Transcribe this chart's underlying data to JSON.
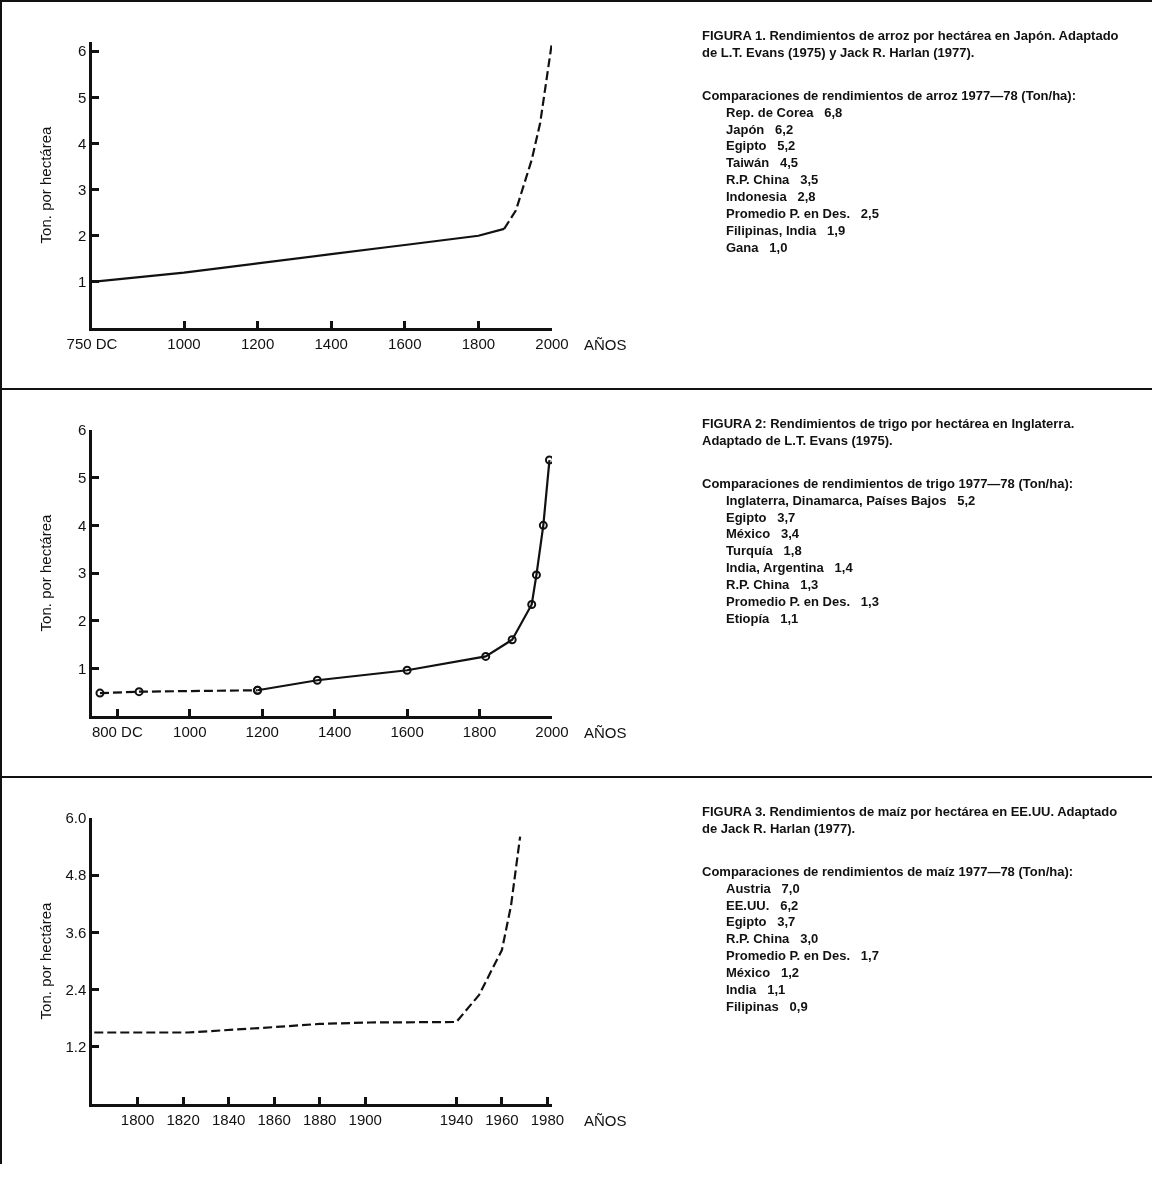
{
  "chart_data": [
    {
      "type": "line",
      "xlabel": "AÑOS",
      "ylabel": "Ton. por hectárea",
      "xlim": [
        750,
        2000
      ],
      "ylim": [
        0,
        6.2
      ],
      "xticks": [
        {
          "value": 750,
          "label": "750 DC"
        },
        1000,
        1200,
        1400,
        1600,
        1800,
        2000
      ],
      "yticks": [
        1,
        2,
        3,
        4,
        5,
        6
      ],
      "grid": false,
      "marker": "none",
      "series": [
        {
          "color": "#111111",
          "line_style": "solid",
          "x": [
            750,
            1000,
            1200,
            1400,
            1550,
            1600,
            1800,
            1870
          ],
          "values": [
            1.0,
            1.2,
            1.4,
            1.6,
            1.75,
            1.8,
            2.0,
            2.15
          ]
        },
        {
          "color": "#111111",
          "line_style": "dashed",
          "x": [
            1870,
            1902,
            1945,
            1968,
            2000
          ],
          "values": [
            2.15,
            2.55,
            3.65,
            4.45,
            6.2
          ]
        }
      ]
    },
    {
      "type": "other",
      "title": "FIGURA 1.  Rendimientos de arroz por hectárea en Japón. Adaptado de L.T. Evans (1975) y Jack R. Harlan (1977).",
      "subtitle": "Comparaciones de rendimientos de arroz 1977—78 (Ton/ha):",
      "annotations": [
        "Rep. de Corea   6,8",
        "Japón   6,2",
        "Egipto   5,2",
        "Taiwán   4,5",
        "R.P. China   3,5",
        "Indonesia   2,8",
        "Promedio P. en Des.   2,5",
        "Filipinas, India   1,9",
        "Gana   1,0"
      ]
    },
    {
      "type": "line",
      "xlabel": "AÑOS",
      "ylabel": "Ton. por hectárea",
      "xlim": [
        730,
        2000
      ],
      "ylim": [
        0,
        6
      ],
      "xticks": [
        {
          "value": 800,
          "label": "800 DC"
        },
        1000,
        1200,
        1400,
        1600,
        1800,
        2000
      ],
      "yticks": [
        1,
        2,
        3,
        4,
        5,
        6
      ],
      "grid": false,
      "marker": "circle",
      "series": [
        {
          "color": "#111111",
          "line_style": "dashed",
          "x": [
            752,
            860,
            1187
          ],
          "values": [
            0.48,
            0.51,
            0.54
          ]
        },
        {
          "color": "#111111",
          "line_style": "solid",
          "x": [
            1187,
            1352,
            1600,
            1817,
            1890,
            1944,
            1957,
            1976,
            1993
          ],
          "values": [
            0.54,
            0.75,
            0.96,
            1.25,
            1.6,
            2.34,
            2.96,
            4.0,
            5.37
          ]
        }
      ]
    },
    {
      "type": "other",
      "title": "FIGURA 2:  Rendimientos de trigo por hectárea en Inglaterra. Adaptado de L.T. Evans (1975).",
      "subtitle": "Comparaciones de rendimientos de trigo 1977—78 (Ton/ha):",
      "annotations": [
        "Inglaterra, Dinamarca, Países Bajos   5,2",
        "Egipto   3,7",
        "México   3,4",
        "Turquía   1,8",
        "India, Argentina   1,4",
        "R.P. China   1,3",
        "Promedio P. en Des.   1,3",
        "Etiopía   1,1"
      ]
    },
    {
      "type": "line",
      "xlabel": "AÑOS",
      "ylabel": "Ton. por hectárea",
      "xlim": [
        1780,
        1982
      ],
      "ylim": [
        0,
        6.0
      ],
      "xticks": [
        1800,
        1820,
        1840,
        1860,
        1880,
        1900,
        1940,
        1960,
        1980
      ],
      "yticks": [
        {
          "value": 1.2,
          "label": "1.2"
        },
        {
          "value": 2.4,
          "label": "2.4"
        },
        {
          "value": 3.6,
          "label": "3.6"
        },
        {
          "value": 4.8,
          "label": "4.8"
        },
        {
          "value": 6.0,
          "label": "6.0"
        }
      ],
      "grid": false,
      "marker": "none",
      "series": [
        {
          "color": "#111111",
          "line_style": "dashed",
          "x": [
            1781,
            1822,
            1859,
            1880,
            1902,
            1940,
            1950,
            1960,
            1964,
            1968
          ],
          "values": [
            1.5,
            1.5,
            1.61,
            1.68,
            1.71,
            1.72,
            2.29,
            3.23,
            4.16,
            5.61
          ]
        }
      ]
    },
    {
      "type": "other",
      "title": "FIGURA 3.  Rendimientos de maíz por hectárea en EE.UU. Adaptado de Jack R. Harlan (1977).",
      "subtitle": "Comparaciones de rendimientos de maíz 1977—78 (Ton/ha):",
      "annotations": [
        "Austria   7,0",
        "EE.UU.   6,2",
        "Egipto   3,7",
        "R.P. China   3,0",
        "Promedio P. en Des.   1,7",
        "México   1,2",
        "India   1,1",
        "Filipinas   0,9"
      ]
    }
  ]
}
